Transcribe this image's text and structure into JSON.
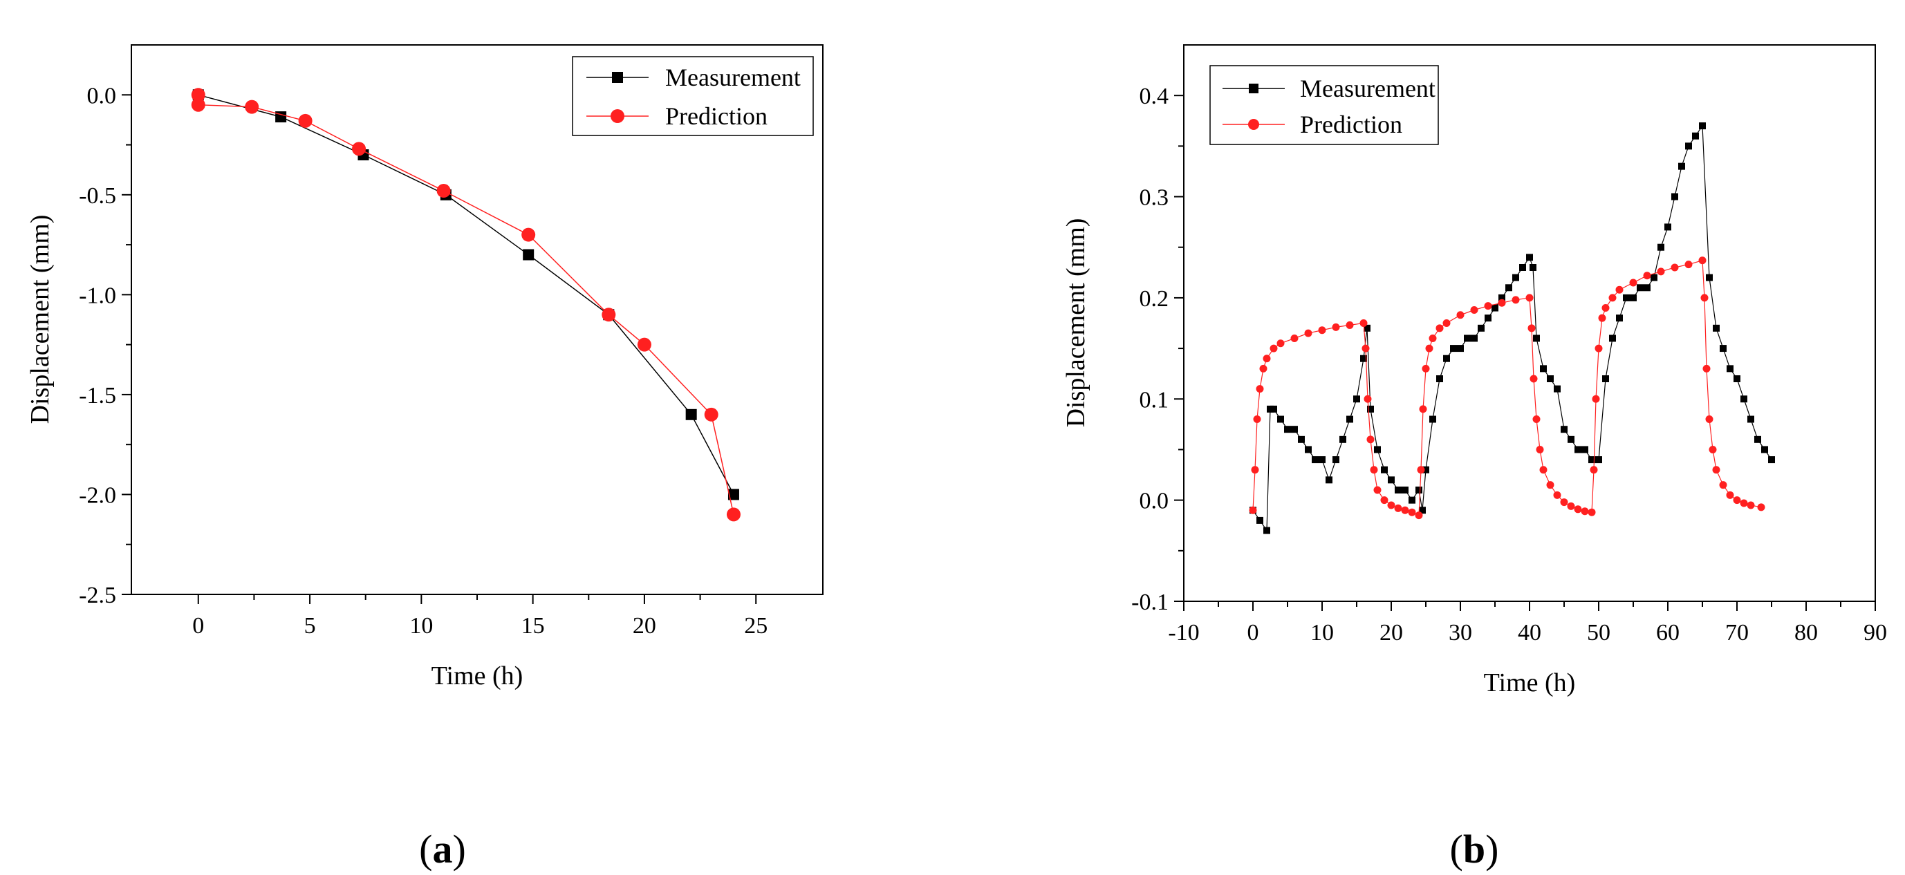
{
  "chart_data": [
    {
      "panel_label": "a",
      "type": "line",
      "xlabel": "Time (h)",
      "ylabel": "Displacement (mm)",
      "xlim": [
        -3,
        28
      ],
      "ylim": [
        -2.5,
        0.25
      ],
      "xticks": [
        0,
        5,
        10,
        15,
        20,
        25
      ],
      "xtick_labels": [
        "0",
        "5",
        "10",
        "15",
        "20",
        "25"
      ],
      "yticks": [
        -2.5,
        -2.0,
        -1.5,
        -1.0,
        -0.5,
        0.0
      ],
      "ytick_labels": [
        "-2.5",
        "-2.0",
        "-1.5",
        "-1.0",
        "-0.5",
        "0.0"
      ],
      "grid": false,
      "legend": "top-right",
      "series": [
        {
          "name": "Measurement",
          "color": "#000000",
          "marker": "square",
          "x": [
            0,
            3.7,
            7.4,
            11.1,
            14.8,
            18.4,
            22.1,
            24
          ],
          "y": [
            0.0,
            -0.11,
            -0.3,
            -0.5,
            -0.8,
            -1.1,
            -1.6,
            -2.0
          ]
        },
        {
          "name": "Prediction",
          "color": "#ff2020",
          "marker": "circle",
          "x": [
            0,
            0,
            2.4,
            4.8,
            7.2,
            11,
            14.8,
            18.4,
            20,
            23,
            24
          ],
          "y": [
            0.0,
            -0.05,
            -0.06,
            -0.13,
            -0.27,
            -0.48,
            -0.7,
            -1.1,
            -1.25,
            -1.6,
            -2.1
          ]
        }
      ]
    },
    {
      "panel_label": "b",
      "type": "line",
      "xlabel": "Time (h)",
      "ylabel": "Displacement (mm)",
      "xlim": [
        -10,
        90
      ],
      "ylim": [
        -0.1,
        0.45
      ],
      "xticks": [
        -10,
        0,
        10,
        20,
        30,
        40,
        50,
        60,
        70,
        80,
        90
      ],
      "xtick_labels": [
        "-10",
        "0",
        "10",
        "20",
        "30",
        "40",
        "50",
        "60",
        "70",
        "80",
        "90"
      ],
      "yticks": [
        -0.1,
        0.0,
        0.1,
        0.2,
        0.3,
        0.4
      ],
      "ytick_labels": [
        "-0.1",
        "0.0",
        "0.1",
        "0.2",
        "0.3",
        "0.4"
      ],
      "grid": false,
      "legend": "top-left",
      "series": [
        {
          "name": "Measurement",
          "color": "#000000",
          "marker": "square",
          "x": [
            0,
            1,
            2,
            2.5,
            3,
            4,
            5,
            6,
            7,
            8,
            9,
            10,
            11,
            12,
            13,
            14,
            15,
            16,
            16.5,
            17,
            18,
            19,
            20,
            21,
            22,
            23,
            24,
            24.5,
            25,
            26,
            27,
            28,
            29,
            30,
            31,
            32,
            33,
            34,
            35,
            36,
            37,
            38,
            39,
            40,
            40.5,
            41,
            42,
            43,
            44,
            45,
            46,
            47,
            48,
            49,
            50,
            51,
            52,
            53,
            54,
            55,
            56,
            57,
            58,
            59,
            60,
            61,
            62,
            63,
            64,
            65,
            66,
            67,
            68,
            69,
            70,
            71,
            72,
            73,
            74,
            75
          ],
          "y": [
            -0.01,
            -0.02,
            -0.03,
            0.09,
            0.09,
            0.08,
            0.07,
            0.07,
            0.06,
            0.05,
            0.04,
            0.04,
            0.02,
            0.04,
            0.06,
            0.08,
            0.1,
            0.14,
            0.17,
            0.09,
            0.05,
            0.03,
            0.02,
            0.01,
            0.01,
            0.0,
            0.01,
            -0.01,
            0.03,
            0.08,
            0.12,
            0.14,
            0.15,
            0.15,
            0.16,
            0.16,
            0.17,
            0.18,
            0.19,
            0.2,
            0.21,
            0.22,
            0.23,
            0.24,
            0.23,
            0.16,
            0.13,
            0.12,
            0.11,
            0.07,
            0.06,
            0.05,
            0.05,
            0.04,
            0.04,
            0.12,
            0.16,
            0.18,
            0.2,
            0.2,
            0.21,
            0.21,
            0.22,
            0.25,
            0.27,
            0.3,
            0.33,
            0.35,
            0.36,
            0.37,
            0.22,
            0.17,
            0.15,
            0.13,
            0.12,
            0.1,
            0.08,
            0.06,
            0.05,
            0.04
          ]
        },
        {
          "name": "Prediction",
          "color": "#ff2020",
          "marker": "circle",
          "x": [
            0,
            0.3,
            0.6,
            1,
            1.5,
            2,
            3,
            4,
            6,
            8,
            10,
            12,
            14,
            16,
            16.3,
            16.6,
            17,
            17.5,
            18,
            19,
            20,
            21,
            22,
            23,
            24,
            24.3,
            24.6,
            25,
            25.5,
            26,
            27,
            28,
            30,
            32,
            34,
            36,
            38,
            40,
            40.3,
            40.6,
            41,
            41.5,
            42,
            43,
            44,
            45,
            46,
            47,
            48,
            49,
            49.3,
            49.6,
            50,
            50.5,
            51,
            52,
            53,
            55,
            57,
            59,
            61,
            63,
            65,
            65.3,
            65.6,
            66,
            66.5,
            67,
            68,
            69,
            70,
            71,
            72,
            73.5
          ],
          "y": [
            -0.01,
            0.03,
            0.08,
            0.11,
            0.13,
            0.14,
            0.15,
            0.155,
            0.16,
            0.165,
            0.168,
            0.171,
            0.173,
            0.175,
            0.15,
            0.1,
            0.06,
            0.03,
            0.01,
            0.0,
            -0.005,
            -0.008,
            -0.01,
            -0.012,
            -0.015,
            0.03,
            0.09,
            0.13,
            0.15,
            0.16,
            0.17,
            0.175,
            0.183,
            0.188,
            0.192,
            0.195,
            0.198,
            0.2,
            0.17,
            0.12,
            0.08,
            0.05,
            0.03,
            0.015,
            0.005,
            -0.002,
            -0.006,
            -0.009,
            -0.011,
            -0.012,
            0.03,
            0.1,
            0.15,
            0.18,
            0.19,
            0.2,
            0.208,
            0.215,
            0.222,
            0.226,
            0.23,
            0.233,
            0.237,
            0.2,
            0.13,
            0.08,
            0.05,
            0.03,
            0.015,
            0.005,
            0.0,
            -0.003,
            -0.005,
            -0.007
          ]
        }
      ]
    }
  ]
}
